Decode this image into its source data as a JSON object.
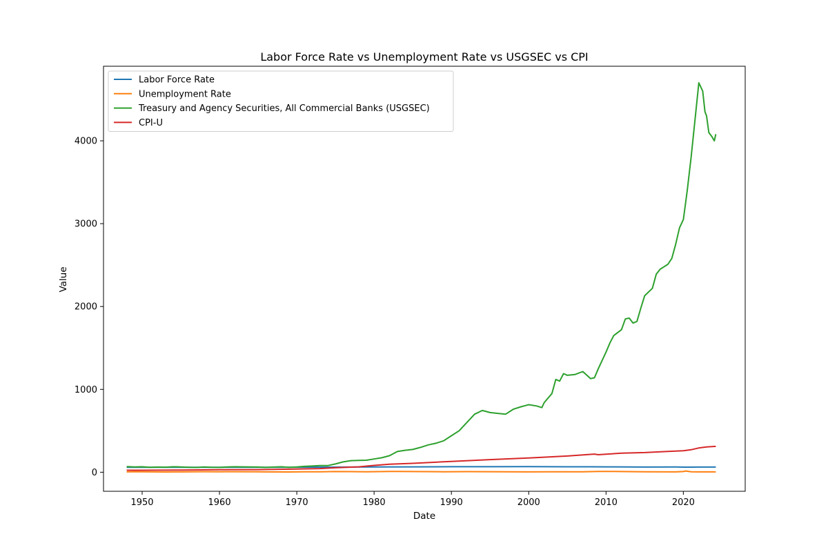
{
  "chart_data": {
    "type": "line",
    "title": "Labor Force Rate vs Unemployment Rate vs USGSEC vs CPI",
    "xlabel": "Date",
    "ylabel": "Value",
    "xlim": [
      1945,
      2028
    ],
    "ylim": [
      -230,
      4900
    ],
    "x_ticks": [
      1950,
      1960,
      1970,
      1980,
      1990,
      2000,
      2010,
      2020
    ],
    "x_tick_labels": [
      "1950",
      "1960",
      "1970",
      "1980",
      "1990",
      "2000",
      "2010",
      "2020"
    ],
    "y_ticks": [
      0,
      1000,
      2000,
      3000,
      4000
    ],
    "y_tick_labels": [
      "0",
      "1000",
      "2000",
      "3000",
      "4000"
    ],
    "grid": false,
    "legend_position": "top-left",
    "series": [
      {
        "name": "Labor Force Rate",
        "color": "#1f77b4",
        "points": [
          [
            1948,
            58.6
          ],
          [
            1955,
            59.3
          ],
          [
            1960,
            59.4
          ],
          [
            1965,
            58.9
          ],
          [
            1970,
            60.4
          ],
          [
            1975,
            61.2
          ],
          [
            1980,
            63.8
          ],
          [
            1985,
            64.8
          ],
          [
            1990,
            66.5
          ],
          [
            1995,
            66.6
          ],
          [
            2000,
            67.1
          ],
          [
            2005,
            66.0
          ],
          [
            2008,
            66.0
          ],
          [
            2010,
            64.7
          ],
          [
            2013,
            63.3
          ],
          [
            2015,
            62.7
          ],
          [
            2019,
            63.1
          ],
          [
            2020,
            61.5
          ],
          [
            2021,
            61.7
          ],
          [
            2022,
            62.2
          ],
          [
            2024.2,
            62.7
          ]
        ]
      },
      {
        "name": "Unemployment Rate",
        "color": "#ff7f0e",
        "points": [
          [
            1948,
            3.8
          ],
          [
            1949,
            6.6
          ],
          [
            1950,
            5.3
          ],
          [
            1953,
            2.9
          ],
          [
            1955,
            4.4
          ],
          [
            1958,
            6.8
          ],
          [
            1960,
            5.5
          ],
          [
            1961,
            6.7
          ],
          [
            1965,
            4.5
          ],
          [
            1969,
            3.5
          ],
          [
            1971,
            5.9
          ],
          [
            1973,
            4.9
          ],
          [
            1975,
            8.5
          ],
          [
            1979,
            5.8
          ],
          [
            1982,
            9.7
          ],
          [
            1983,
            9.6
          ],
          [
            1989,
            5.3
          ],
          [
            1992,
            7.5
          ],
          [
            2000,
            4.0
          ],
          [
            2003,
            6.0
          ],
          [
            2007,
            4.6
          ],
          [
            2009,
            9.3
          ],
          [
            2010,
            9.6
          ],
          [
            2015,
            5.3
          ],
          [
            2019,
            3.7
          ],
          [
            2020,
            8.1
          ],
          [
            2020.3,
            14.7
          ],
          [
            2021,
            5.4
          ],
          [
            2022,
            3.6
          ],
          [
            2024.2,
            3.8
          ]
        ]
      },
      {
        "name": "Treasury and Agency Securities, All Commercial Banks (USGSEC)",
        "color": "#2ca02c",
        "points": [
          [
            1948,
            68
          ],
          [
            1949,
            63
          ],
          [
            1950,
            66
          ],
          [
            1951,
            60
          ],
          [
            1952,
            62
          ],
          [
            1953,
            61
          ],
          [
            1954,
            66
          ],
          [
            1955,
            64
          ],
          [
            1956,
            60
          ],
          [
            1957,
            57
          ],
          [
            1958,
            64
          ],
          [
            1959,
            60
          ],
          [
            1960,
            58
          ],
          [
            1961,
            64
          ],
          [
            1962,
            66
          ],
          [
            1963,
            65
          ],
          [
            1964,
            64
          ],
          [
            1965,
            62
          ],
          [
            1966,
            58
          ],
          [
            1967,
            62
          ],
          [
            1968,
            66
          ],
          [
            1969,
            60
          ],
          [
            1970,
            63
          ],
          [
            1971,
            71
          ],
          [
            1972,
            75
          ],
          [
            1973,
            80
          ],
          [
            1974,
            80
          ],
          [
            1975,
            100
          ],
          [
            1976,
            125
          ],
          [
            1977,
            140
          ],
          [
            1978,
            142
          ],
          [
            1979,
            145
          ],
          [
            1980,
            160
          ],
          [
            1981,
            175
          ],
          [
            1982,
            200
          ],
          [
            1983,
            250
          ],
          [
            1984,
            265
          ],
          [
            1985,
            275
          ],
          [
            1986,
            300
          ],
          [
            1987,
            330
          ],
          [
            1988,
            350
          ],
          [
            1989,
            380
          ],
          [
            1990,
            440
          ],
          [
            1991,
            500
          ],
          [
            1992,
            600
          ],
          [
            1993,
            700
          ],
          [
            1994,
            745
          ],
          [
            1995,
            720
          ],
          [
            1996,
            710
          ],
          [
            1997,
            700
          ],
          [
            1998,
            760
          ],
          [
            1999,
            790
          ],
          [
            2000,
            815
          ],
          [
            2001,
            800
          ],
          [
            2001.7,
            780
          ],
          [
            2002,
            840
          ],
          [
            2003,
            950
          ],
          [
            2003.5,
            1120
          ],
          [
            2004,
            1100
          ],
          [
            2004.5,
            1190
          ],
          [
            2005,
            1170
          ],
          [
            2006,
            1180
          ],
          [
            2007,
            1215
          ],
          [
            2008,
            1130
          ],
          [
            2008.5,
            1140
          ],
          [
            2009,
            1250
          ],
          [
            2010,
            1450
          ],
          [
            2010.5,
            1560
          ],
          [
            2011,
            1650
          ],
          [
            2012,
            1720
          ],
          [
            2012.5,
            1850
          ],
          [
            2013,
            1860
          ],
          [
            2013.5,
            1800
          ],
          [
            2014,
            1820
          ],
          [
            2014.5,
            1980
          ],
          [
            2015,
            2130
          ],
          [
            2016,
            2220
          ],
          [
            2016.5,
            2390
          ],
          [
            2017,
            2450
          ],
          [
            2018,
            2510
          ],
          [
            2018.5,
            2580
          ],
          [
            2019,
            2750
          ],
          [
            2019.5,
            2950
          ],
          [
            2020,
            3050
          ],
          [
            2020.5,
            3400
          ],
          [
            2021,
            3800
          ],
          [
            2021.5,
            4250
          ],
          [
            2022,
            4700
          ],
          [
            2022.5,
            4600
          ],
          [
            2022.8,
            4350
          ],
          [
            2023,
            4300
          ],
          [
            2023.3,
            4100
          ],
          [
            2023.7,
            4050
          ],
          [
            2024,
            4000
          ],
          [
            2024.2,
            4080
          ]
        ]
      },
      {
        "name": "CPI-U",
        "color": "#d62728",
        "points": [
          [
            1948,
            23.7
          ],
          [
            1950,
            24.1
          ],
          [
            1955,
            26.8
          ],
          [
            1960,
            29.6
          ],
          [
            1965,
            31.5
          ],
          [
            1970,
            38.8
          ],
          [
            1973,
            44.4
          ],
          [
            1975,
            53.8
          ],
          [
            1978,
            65.2
          ],
          [
            1980,
            82.4
          ],
          [
            1982,
            96.5
          ],
          [
            1985,
            107.6
          ],
          [
            1990,
            130.7
          ],
          [
            1995,
            152.4
          ],
          [
            2000,
            172.2
          ],
          [
            2005,
            195.3
          ],
          [
            2008,
            215.3
          ],
          [
            2008.5,
            219.0
          ],
          [
            2009,
            211.1
          ],
          [
            2010,
            218.1
          ],
          [
            2012,
            229.6
          ],
          [
            2015,
            237.0
          ],
          [
            2018,
            251.1
          ],
          [
            2020,
            258.8
          ],
          [
            2021,
            271.0
          ],
          [
            2022,
            292.7
          ],
          [
            2023,
            304.7
          ],
          [
            2024.2,
            312.2
          ]
        ]
      }
    ]
  }
}
